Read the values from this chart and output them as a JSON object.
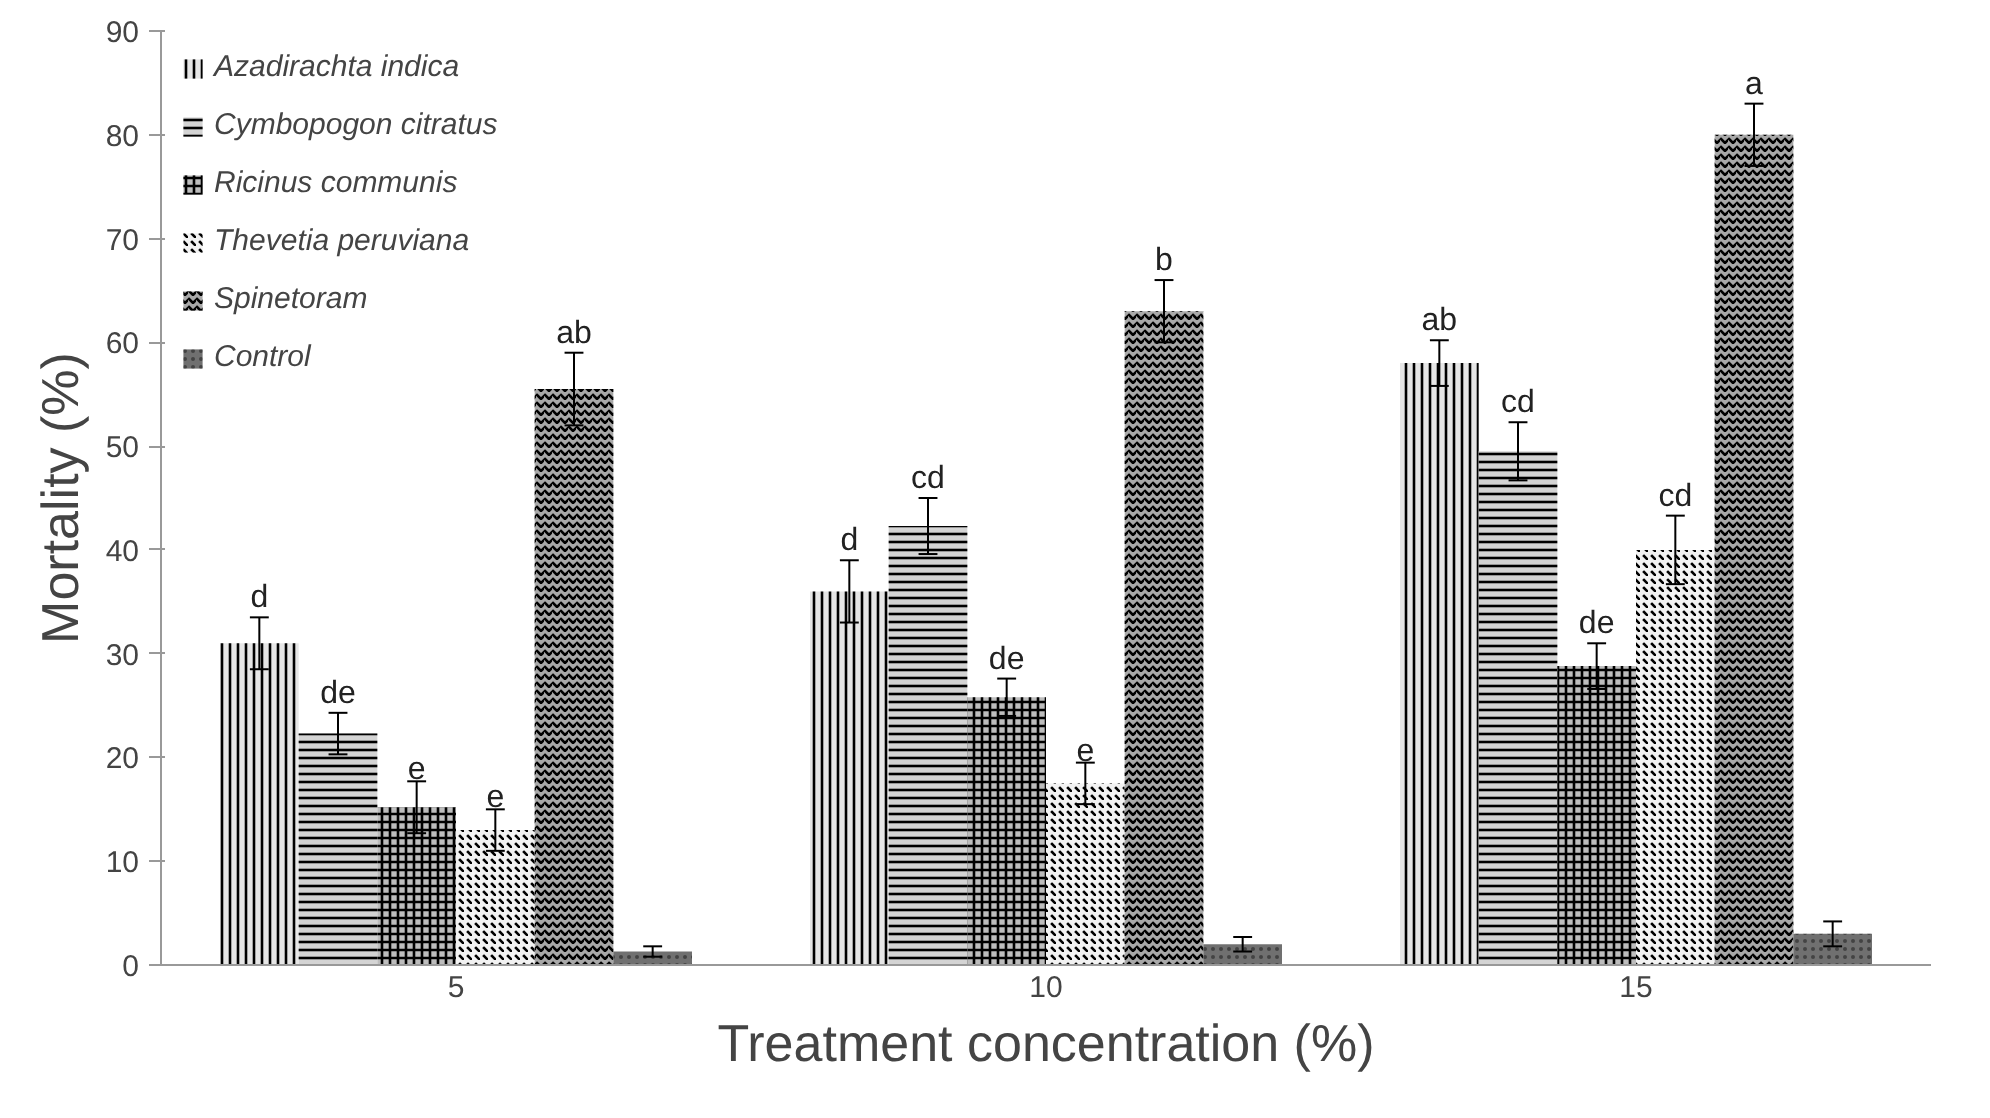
{
  "chart_data": {
    "type": "bar",
    "xlabel": "Treatment concentration (%)",
    "ylabel": "Mortality (%)",
    "categories": [
      "5",
      "10",
      "15"
    ],
    "ylim": [
      0,
      90
    ],
    "yticks": [
      0,
      10,
      20,
      30,
      40,
      50,
      60,
      70,
      80,
      90
    ],
    "grid": false,
    "legend": "top left",
    "series": [
      {
        "name": "Azadirachta indica",
        "color": "#e6e6e6",
        "values": [
          31,
          36,
          58
        ],
        "errors": [
          2.5,
          3,
          2.2
        ],
        "value_labels": [
          "d",
          "d",
          "ab"
        ]
      },
      {
        "name": "Cymbopogon citratus",
        "color": "#d4d4d4",
        "values": [
          22.3,
          42.3,
          49.5
        ],
        "errors": [
          2,
          2.7,
          2.8
        ],
        "value_labels": [
          "de",
          "cd",
          "cd"
        ]
      },
      {
        "name": "Ricinus communis",
        "color": "#bdbdbd",
        "values": [
          15.2,
          25.8,
          28.8
        ],
        "errors": [
          2.5,
          1.8,
          2.2
        ],
        "value_labels": [
          "e",
          "de",
          "de"
        ]
      },
      {
        "name": "Thevetia peruviana",
        "color": "#f2f2f2",
        "values": [
          13,
          17.5,
          40
        ],
        "errors": [
          2,
          2,
          3.3
        ],
        "value_labels": [
          "e",
          "e",
          "cd"
        ]
      },
      {
        "name": "Spinetoram",
        "color": "#a8a8a8",
        "values": [
          55.5,
          63,
          80
        ],
        "errors": [
          3.5,
          3,
          3
        ],
        "value_labels": [
          "ab",
          "b",
          "a"
        ]
      },
      {
        "name": "Control",
        "color": "#707070",
        "values": [
          1.3,
          2,
          3
        ],
        "errors": [
          0.5,
          0.7,
          1.2
        ],
        "value_labels": [
          null,
          null,
          null
        ]
      }
    ]
  }
}
